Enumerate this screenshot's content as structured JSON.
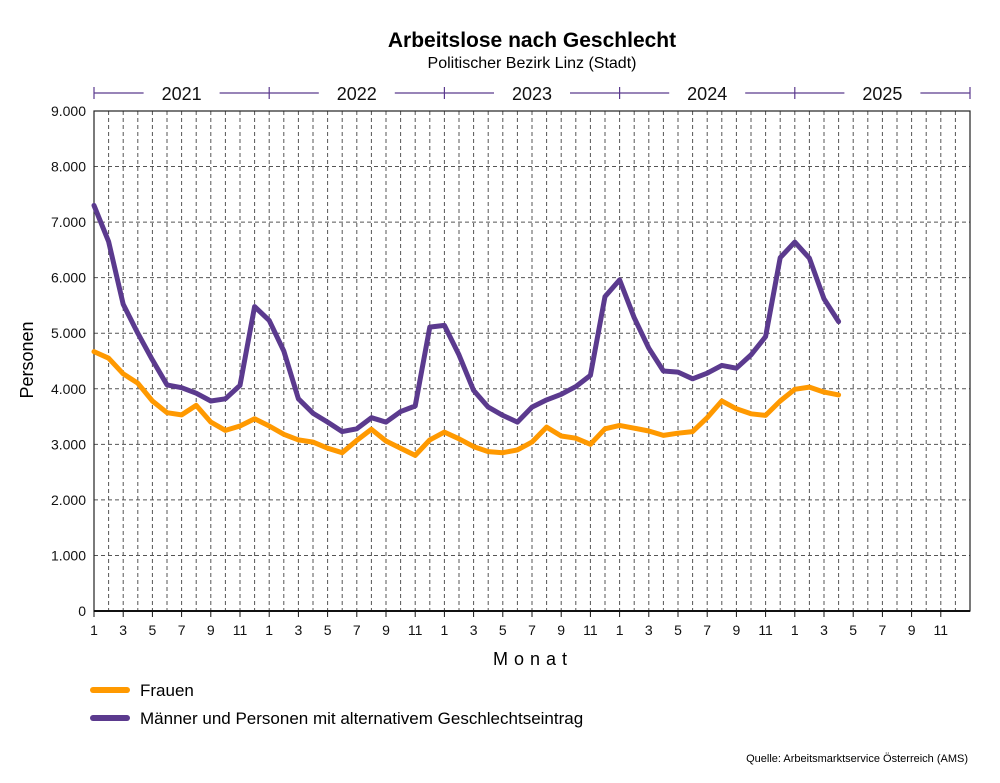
{
  "chart_data": {
    "type": "line",
    "title": "Arbeitslose nach Geschlecht",
    "subtitle": "Politischer Bezirk Linz (Stadt)",
    "xlabel": "Monat",
    "ylabel": "Personen",
    "years": [
      "2021",
      "2022",
      "2023",
      "2024",
      "2025"
    ],
    "month_tick_labels": [
      "1",
      "3",
      "5",
      "7",
      "9",
      "11"
    ],
    "y_tick_labels": [
      "0",
      "1.000",
      "2.000",
      "3.000",
      "4.000",
      "5.000",
      "6.000",
      "7.000",
      "8.000",
      "9.000"
    ],
    "ylim": [
      0,
      9000
    ],
    "months_total": 60,
    "grid": true,
    "legend_position": "bottom-left",
    "series": [
      {
        "name": "Frauen",
        "color": "#FF9900",
        "values": [
          4670,
          4550,
          4270,
          4100,
          3780,
          3570,
          3530,
          3700,
          3400,
          3250,
          3330,
          3460,
          3330,
          3180,
          3080,
          3040,
          2930,
          2850,
          3070,
          3270,
          3060,
          2930,
          2800,
          3080,
          3220,
          3100,
          2960,
          2870,
          2850,
          2900,
          3040,
          3310,
          3150,
          3110,
          3000,
          3280,
          3340,
          3290,
          3240,
          3160,
          3200,
          3230,
          3480,
          3780,
          3640,
          3550,
          3520,
          3780,
          3990,
          4030,
          3940,
          3890
        ]
      },
      {
        "name": "Männer und Personen mit alternativem Geschlechtseintrag",
        "color": "#5B3A8E",
        "values": [
          7300,
          6650,
          5520,
          5000,
          4520,
          4070,
          4020,
          3920,
          3780,
          3820,
          4060,
          5480,
          5230,
          4680,
          3820,
          3560,
          3400,
          3230,
          3280,
          3480,
          3400,
          3590,
          3690,
          5110,
          5140,
          4610,
          3970,
          3670,
          3520,
          3400,
          3670,
          3800,
          3900,
          4040,
          4240,
          5660,
          5960,
          5280,
          4730,
          4320,
          4300,
          4180,
          4280,
          4420,
          4370,
          4610,
          4940,
          6360,
          6640,
          6350,
          5620,
          5210
        ]
      }
    ]
  },
  "source_text": "Quelle: Arbeitsmarktservice Österreich (AMS)"
}
